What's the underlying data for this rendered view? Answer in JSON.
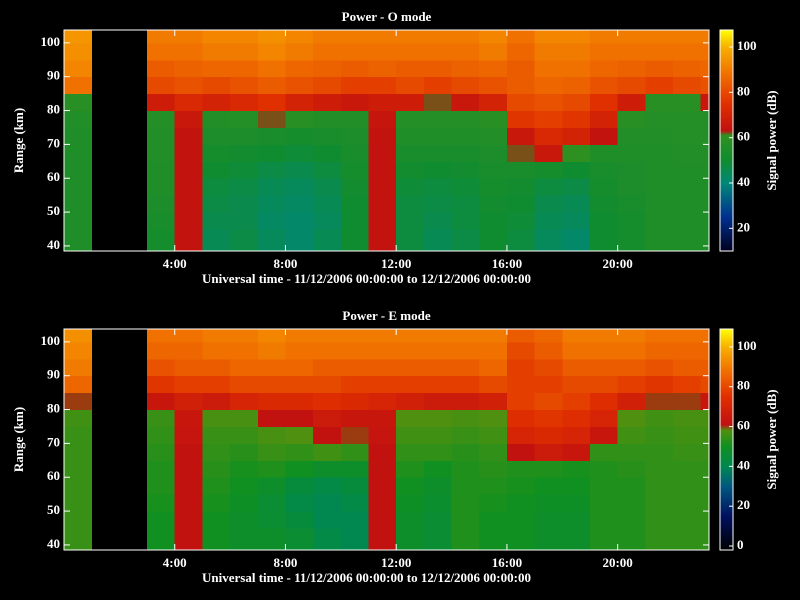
{
  "chart_data": [
    {
      "type": "heatmap",
      "title": "Power - O mode",
      "xlabel": "Universal time - 11/12/2006 00:00:00 to 12/12/2006 00:00:00",
      "ylabel": "Range (km)",
      "colorbar_label": "Signal power (dB)",
      "xlim": [
        0,
        23.3
      ],
      "ylim": [
        38.5,
        103.8
      ],
      "xticks": [
        {
          "value": 4,
          "label": "4:00"
        },
        {
          "value": 8,
          "label": "8:00"
        },
        {
          "value": 12,
          "label": "12:00"
        },
        {
          "value": 16,
          "label": "16:00"
        },
        {
          "value": 20,
          "label": "20:00"
        }
      ],
      "yticks": [
        40,
        50,
        60,
        70,
        80,
        90,
        100
      ],
      "clim": [
        10,
        107.5
      ],
      "cticks": [
        20,
        40,
        60,
        80,
        100
      ],
      "colormap": [
        {
          "value": 10,
          "color": "#000020"
        },
        {
          "value": 25,
          "color": "#003090"
        },
        {
          "value": 40,
          "color": "#008878"
        },
        {
          "value": 50,
          "color": "#108c30"
        },
        {
          "value": 61,
          "color": "#309020"
        },
        {
          "value": 63,
          "color": "#c01010"
        },
        {
          "value": 75,
          "color": "#e03000"
        },
        {
          "value": 88,
          "color": "#f07000"
        },
        {
          "value": 100,
          "color": "#f8b000"
        },
        {
          "value": 107.5,
          "color": "#ffff00"
        }
      ],
      "xbins": [
        0,
        1,
        2,
        3,
        4,
        5,
        6,
        7,
        8,
        9,
        10,
        11,
        12,
        13,
        14,
        15,
        16,
        17,
        18,
        19,
        20,
        21,
        22,
        23,
        23.3
      ],
      "ybins": [
        38.5,
        45,
        50,
        55,
        60,
        65,
        70,
        75,
        80,
        85,
        90,
        95,
        100,
        103.8
      ],
      "z": [
        [
          55,
          null,
          null,
          52,
          64,
          45,
          47,
          44,
          42,
          45,
          50,
          64,
          48,
          45,
          47,
          50,
          48,
          44,
          42,
          50,
          52,
          55,
          55,
          55
        ],
        [
          55,
          null,
          null,
          53,
          64,
          46,
          46,
          43,
          42,
          44,
          50,
          64,
          48,
          46,
          48,
          50,
          49,
          45,
          44,
          50,
          52,
          55,
          55,
          55
        ],
        [
          55,
          null,
          null,
          54,
          64,
          47,
          46,
          44,
          43,
          45,
          50,
          64,
          48,
          47,
          48,
          51,
          50,
          46,
          45,
          51,
          53,
          55,
          55,
          55
        ],
        [
          55,
          null,
          null,
          55,
          64,
          48,
          47,
          45,
          44,
          46,
          51,
          64,
          49,
          48,
          49,
          52,
          51,
          48,
          47,
          52,
          54,
          55,
          55,
          55
        ],
        [
          55,
          null,
          null,
          55,
          64,
          50,
          49,
          47,
          46,
          48,
          52,
          64,
          51,
          50,
          51,
          53,
          53,
          52,
          50,
          53,
          54,
          55,
          55,
          55
        ],
        [
          55,
          null,
          null,
          56,
          64,
          52,
          51,
          50,
          49,
          50,
          53,
          64,
          53,
          53,
          53,
          54,
          62,
          66,
          60,
          55,
          55,
          55,
          56,
          56
        ],
        [
          55,
          null,
          null,
          56,
          64,
          54,
          54,
          53,
          52,
          53,
          54,
          64,
          55,
          55,
          55,
          56,
          66,
          72,
          70,
          64,
          56,
          56,
          57,
          57
        ],
        [
          56,
          null,
          null,
          57,
          66,
          56,
          57,
          62,
          58,
          56,
          56,
          65,
          57,
          57,
          57,
          58,
          76,
          78,
          76,
          70,
          58,
          57,
          57,
          57
        ],
        [
          58,
          null,
          null,
          68,
          72,
          70,
          72,
          75,
          70,
          68,
          66,
          68,
          68,
          62,
          66,
          70,
          80,
          82,
          80,
          75,
          68,
          58,
          58,
          66
        ],
        [
          88,
          null,
          null,
          80,
          82,
          80,
          82,
          84,
          82,
          80,
          78,
          78,
          80,
          78,
          80,
          82,
          84,
          86,
          85,
          82,
          80,
          78,
          80,
          82
        ],
        [
          92,
          null,
          null,
          84,
          85,
          86,
          86,
          88,
          86,
          85,
          84,
          85,
          84,
          84,
          85,
          86,
          84,
          88,
          88,
          86,
          85,
          84,
          85,
          86
        ],
        [
          94,
          null,
          null,
          88,
          88,
          90,
          90,
          92,
          90,
          88,
          88,
          88,
          88,
          88,
          88,
          90,
          86,
          90,
          90,
          88,
          88,
          88,
          88,
          88
        ],
        [
          95,
          null,
          null,
          90,
          90,
          92,
          92,
          94,
          92,
          90,
          90,
          90,
          90,
          90,
          90,
          92,
          88,
          92,
          92,
          90,
          90,
          90,
          90,
          90
        ]
      ]
    },
    {
      "type": "heatmap",
      "title": "Power - E mode",
      "xlabel": "Universal time - 11/12/2006 00:00:00 to 12/12/2006 00:00:00",
      "ylabel": "Range (km)",
      "colorbar_label": "Signal power (dB)",
      "xlim": [
        0,
        23.3
      ],
      "ylim": [
        38.5,
        103.8
      ],
      "xticks": [
        {
          "value": 4,
          "label": "4:00"
        },
        {
          "value": 8,
          "label": "8:00"
        },
        {
          "value": 12,
          "label": "12:00"
        },
        {
          "value": 16,
          "label": "16:00"
        },
        {
          "value": 20,
          "label": "20:00"
        }
      ],
      "yticks": [
        40,
        50,
        60,
        70,
        80,
        90,
        100
      ],
      "clim": [
        -2,
        109
      ],
      "cticks": [
        0,
        20,
        40,
        60,
        80,
        100
      ],
      "colormap": [
        {
          "value": -2,
          "color": "#000000"
        },
        {
          "value": 15,
          "color": "#001060"
        },
        {
          "value": 30,
          "color": "#005880"
        },
        {
          "value": 40,
          "color": "#008850"
        },
        {
          "value": 50,
          "color": "#109020"
        },
        {
          "value": 58,
          "color": "#509010"
        },
        {
          "value": 61,
          "color": "#c01010"
        },
        {
          "value": 75,
          "color": "#e03000"
        },
        {
          "value": 88,
          "color": "#f07000"
        },
        {
          "value": 100,
          "color": "#f8b000"
        },
        {
          "value": 109,
          "color": "#ffff00"
        }
      ],
      "xbins": [
        0,
        1,
        2,
        3,
        4,
        5,
        6,
        7,
        8,
        9,
        10,
        11,
        12,
        13,
        14,
        15,
        16,
        17,
        18,
        19,
        20,
        21,
        22,
        23,
        23.3
      ],
      "ybins": [
        38.5,
        45,
        50,
        55,
        60,
        65,
        70,
        75,
        80,
        85,
        90,
        95,
        100,
        103.8
      ],
      "z": [
        [
          55,
          null,
          null,
          50,
          62,
          50,
          48,
          48,
          46,
          42,
          40,
          62,
          48,
          46,
          52,
          50,
          50,
          48,
          48,
          52,
          52,
          54,
          54,
          54
        ],
        [
          55,
          null,
          null,
          50,
          62,
          50,
          48,
          46,
          44,
          40,
          40,
          62,
          48,
          46,
          52,
          50,
          50,
          48,
          48,
          52,
          52,
          54,
          54,
          54
        ],
        [
          55,
          null,
          null,
          51,
          62,
          51,
          49,
          46,
          42,
          40,
          42,
          62,
          49,
          47,
          52,
          51,
          50,
          49,
          49,
          52,
          52,
          54,
          54,
          54
        ],
        [
          55,
          null,
          null,
          52,
          62,
          52,
          50,
          48,
          44,
          42,
          44,
          62,
          50,
          48,
          52,
          52,
          51,
          50,
          50,
          52,
          52,
          54,
          54,
          54
        ],
        [
          55,
          null,
          null,
          52,
          62,
          53,
          51,
          52,
          50,
          48,
          48,
          62,
          52,
          50,
          52,
          53,
          52,
          52,
          51,
          52,
          53,
          54,
          54,
          54
        ],
        [
          55,
          null,
          null,
          53,
          62,
          54,
          53,
          55,
          54,
          56,
          54,
          62,
          54,
          54,
          53,
          54,
          62,
          66,
          64,
          54,
          54,
          54,
          55,
          55
        ],
        [
          55,
          null,
          null,
          54,
          63,
          55,
          55,
          57,
          58,
          62,
          60,
          63,
          56,
          56,
          55,
          56,
          70,
          72,
          70,
          64,
          56,
          55,
          56,
          56
        ],
        [
          56,
          null,
          null,
          55,
          64,
          57,
          57,
          62,
          62,
          66,
          64,
          64,
          58,
          58,
          57,
          58,
          74,
          76,
          74,
          70,
          58,
          56,
          57,
          57
        ],
        [
          60,
          null,
          null,
          64,
          68,
          66,
          70,
          72,
          72,
          74,
          72,
          70,
          68,
          66,
          66,
          68,
          78,
          80,
          78,
          74,
          68,
          60,
          60,
          64
        ],
        [
          86,
          null,
          null,
          76,
          78,
          78,
          80,
          80,
          80,
          80,
          78,
          78,
          78,
          78,
          78,
          80,
          78,
          78,
          80,
          80,
          78,
          76,
          78,
          80
        ],
        [
          90,
          null,
          null,
          82,
          84,
          84,
          86,
          86,
          86,
          84,
          84,
          84,
          84,
          84,
          84,
          86,
          78,
          80,
          84,
          84,
          84,
          82,
          84,
          84
        ],
        [
          92,
          null,
          null,
          86,
          86,
          88,
          88,
          90,
          88,
          88,
          88,
          88,
          88,
          88,
          88,
          88,
          80,
          84,
          88,
          88,
          88,
          86,
          86,
          86
        ],
        [
          94,
          null,
          null,
          88,
          88,
          90,
          90,
          92,
          90,
          90,
          90,
          90,
          90,
          90,
          90,
          90,
          84,
          86,
          90,
          90,
          90,
          88,
          88,
          88
        ]
      ]
    }
  ]
}
